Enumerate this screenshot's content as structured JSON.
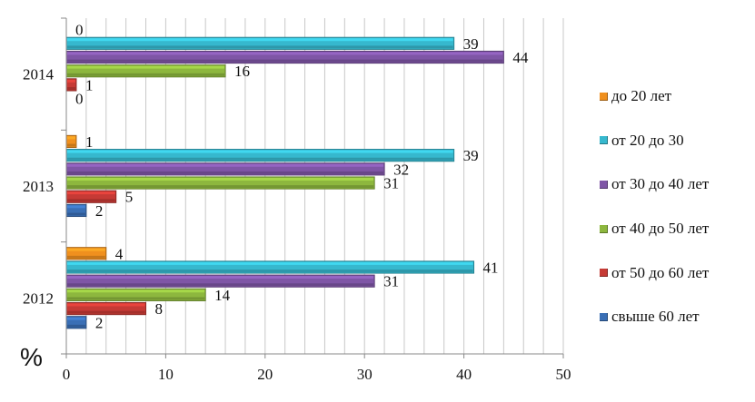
{
  "chart_data": {
    "type": "bar",
    "orientation": "horizontal",
    "categories": [
      "2014",
      "2013",
      "2012"
    ],
    "series": [
      {
        "name": "до 20 лет",
        "color": "#F0901E",
        "values": [
          0,
          1,
          4
        ]
      },
      {
        "name": "от 20 до 30",
        "color": "#36B8CE",
        "values": [
          39,
          39,
          41
        ]
      },
      {
        "name": "от 30 до 40 лет",
        "color": "#7F56A6",
        "values": [
          44,
          32,
          31
        ]
      },
      {
        "name": "от 40 до 50 лет",
        "color": "#8DB73E",
        "values": [
          16,
          31,
          14
        ]
      },
      {
        "name": "от 50 до 60 лет",
        "color": "#C63A35",
        "values": [
          1,
          5,
          8
        ]
      },
      {
        "name": "свыше 60 лет",
        "color": "#3A6FB5",
        "values": [
          0,
          2,
          2
        ]
      }
    ],
    "xlim": [
      0,
      50
    ],
    "x_ticks": [
      "0",
      "10",
      "20",
      "30",
      "40",
      "50"
    ],
    "xlabel": "%",
    "grid": "vertical",
    "legend_position": "right",
    "data_labels": true
  }
}
